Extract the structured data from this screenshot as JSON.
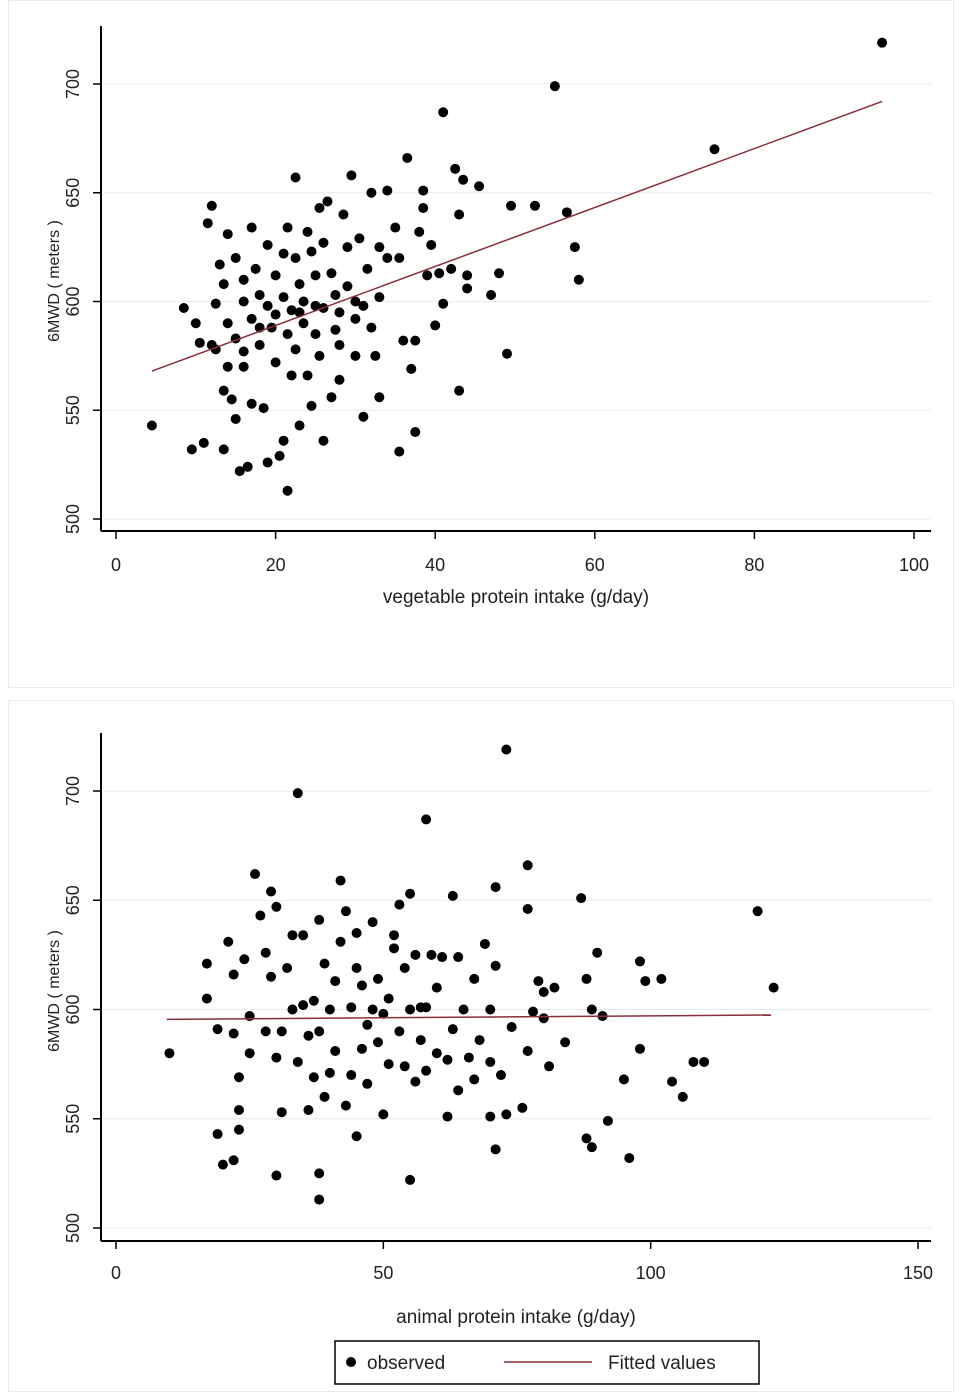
{
  "chart_data": [
    {
      "type": "scatter",
      "title": "",
      "xlabel": "vegetable protein intake (g/day)",
      "ylabel": "6MWD ( meters )",
      "xlim": [
        0,
        100
      ],
      "ylim": [
        500,
        720
      ],
      "xticks": [
        "0",
        "20",
        "40",
        "60",
        "80",
        "100"
      ],
      "yticks": [
        "500",
        "550",
        "600",
        "650",
        "700"
      ],
      "grid": true,
      "colors": {
        "points": "#000000",
        "fit": "#8b2f3a",
        "grid": "#e3ecf0"
      },
      "fitted": {
        "x": [
          4.5,
          96
        ],
        "y": [
          568,
          692
        ]
      },
      "points": [
        [
          4.5,
          543
        ],
        [
          96,
          719
        ],
        [
          55,
          699
        ],
        [
          75,
          670
        ],
        [
          41,
          687
        ],
        [
          49,
          576
        ],
        [
          43,
          559
        ],
        [
          56.5,
          641
        ],
        [
          57.5,
          625
        ],
        [
          58,
          610
        ],
        [
          52.5,
          644
        ],
        [
          49.5,
          644
        ],
        [
          47,
          603
        ],
        [
          48,
          613
        ],
        [
          45.5,
          653
        ],
        [
          42.5,
          661
        ],
        [
          43.5,
          656
        ],
        [
          36.5,
          666
        ],
        [
          37.5,
          540
        ],
        [
          35.5,
          531
        ],
        [
          21.5,
          513
        ],
        [
          8.5,
          597
        ],
        [
          9.5,
          532
        ],
        [
          10,
          590
        ],
        [
          10.5,
          581
        ],
        [
          11,
          535
        ],
        [
          11.5,
          636
        ],
        [
          12,
          644
        ],
        [
          12.5,
          599
        ],
        [
          12.5,
          578
        ],
        [
          13,
          617
        ],
        [
          13.5,
          608
        ],
        [
          13.5,
          559
        ],
        [
          13.5,
          532
        ],
        [
          14,
          631
        ],
        [
          14,
          590
        ],
        [
          14,
          570
        ],
        [
          14.5,
          555
        ],
        [
          15,
          620
        ],
        [
          15,
          583
        ],
        [
          15,
          546
        ],
        [
          15.5,
          522
        ],
        [
          16,
          610
        ],
        [
          16,
          600
        ],
        [
          16,
          570
        ],
        [
          16.5,
          524
        ],
        [
          17,
          634
        ],
        [
          17,
          592
        ],
        [
          17,
          553
        ],
        [
          17.5,
          615
        ],
        [
          18,
          603
        ],
        [
          18,
          580
        ],
        [
          18.5,
          551
        ],
        [
          19,
          626
        ],
        [
          19,
          598
        ],
        [
          19,
          526
        ],
        [
          19.5,
          588
        ],
        [
          20,
          612
        ],
        [
          20,
          572
        ],
        [
          20.5,
          529
        ],
        [
          21,
          622
        ],
        [
          21,
          602
        ],
        [
          21,
          536
        ],
        [
          21.5,
          634
        ],
        [
          21.5,
          585
        ],
        [
          22,
          596
        ],
        [
          22,
          566
        ],
        [
          22.5,
          657
        ],
        [
          22.5,
          620
        ],
        [
          22.5,
          578
        ],
        [
          23,
          608
        ],
        [
          23,
          543
        ],
        [
          23.5,
          600
        ],
        [
          23.5,
          590
        ],
        [
          24,
          632
        ],
        [
          24,
          566
        ],
        [
          24.5,
          623
        ],
        [
          24.5,
          552
        ],
        [
          25,
          612
        ],
        [
          25,
          585
        ],
        [
          25.5,
          643
        ],
        [
          25.5,
          575
        ],
        [
          26,
          627
        ],
        [
          26,
          597
        ],
        [
          26,
          536
        ],
        [
          26.5,
          646
        ],
        [
          27,
          613
        ],
        [
          27,
          556
        ],
        [
          27.5,
          603
        ],
        [
          27.5,
          587
        ],
        [
          28,
          580
        ],
        [
          28,
          564
        ],
        [
          28.5,
          640
        ],
        [
          29,
          625
        ],
        [
          29,
          607
        ],
        [
          29.5,
          658
        ],
        [
          30,
          592
        ],
        [
          30,
          575
        ],
        [
          30.5,
          629
        ],
        [
          31,
          547
        ],
        [
          31.5,
          615
        ],
        [
          32,
          650
        ],
        [
          32,
          588
        ],
        [
          32.5,
          575
        ],
        [
          33,
          602
        ],
        [
          33,
          556
        ],
        [
          34,
          651
        ],
        [
          34,
          620
        ],
        [
          35,
          634
        ],
        [
          35.5,
          620
        ],
        [
          36,
          582
        ],
        [
          37,
          569
        ],
        [
          37.5,
          582
        ],
        [
          38,
          632
        ],
        [
          38.5,
          651
        ],
        [
          38.5,
          643
        ],
        [
          39,
          612
        ],
        [
          39.5,
          626
        ],
        [
          40,
          589
        ],
        [
          40.5,
          613
        ],
        [
          41,
          599
        ],
        [
          42,
          615
        ],
        [
          43,
          640
        ],
        [
          44,
          612
        ],
        [
          44,
          606
        ],
        [
          30,
          600
        ],
        [
          25,
          598
        ],
        [
          23,
          595
        ],
        [
          20,
          594
        ],
        [
          18,
          588
        ],
        [
          28,
          595
        ],
        [
          31,
          598
        ],
        [
          16,
          577
        ],
        [
          12,
          580
        ],
        [
          33,
          625
        ]
      ]
    },
    {
      "type": "scatter",
      "title": "",
      "xlabel": "animal protein intake (g/day)",
      "ylabel": "6MWD ( meters )",
      "xlim": [
        0,
        150
      ],
      "ylim": [
        500,
        720
      ],
      "xticks": [
        "0",
        "50",
        "100",
        "150"
      ],
      "yticks": [
        "500",
        "550",
        "600",
        "650",
        "700"
      ],
      "grid": true,
      "colors": {
        "points": "#000000",
        "fit": "#8b2f3a",
        "grid": "#e3ecf0"
      },
      "fitted": {
        "x": [
          9.5,
          122.5
        ],
        "y": [
          595.5,
          597.5
        ]
      },
      "legend": {
        "position": "bottom",
        "items": [
          "observed",
          "Fitted values"
        ]
      },
      "points": [
        [
          10,
          580
        ],
        [
          34,
          699
        ],
        [
          58,
          687
        ],
        [
          73,
          719
        ],
        [
          120,
          645
        ],
        [
          123,
          610
        ],
        [
          104,
          567
        ],
        [
          106,
          560
        ],
        [
          108,
          576
        ],
        [
          110,
          576
        ],
        [
          96,
          532
        ],
        [
          89,
          537
        ],
        [
          88,
          541
        ],
        [
          92,
          549
        ],
        [
          95,
          568
        ],
        [
          98,
          582
        ],
        [
          98,
          622
        ],
        [
          99,
          613
        ],
        [
          102,
          614
        ],
        [
          87,
          651
        ],
        [
          77,
          666
        ],
        [
          77,
          646
        ],
        [
          71,
          656
        ],
        [
          70,
          551
        ],
        [
          71,
          536
        ],
        [
          55,
          522
        ],
        [
          38,
          513
        ],
        [
          38,
          525
        ],
        [
          20,
          529
        ],
        [
          19,
          543
        ],
        [
          22,
          531
        ],
        [
          30,
          524
        ],
        [
          17,
          621
        ],
        [
          17,
          605
        ],
        [
          19,
          591
        ],
        [
          21,
          631
        ],
        [
          22,
          616
        ],
        [
          22,
          589
        ],
        [
          23,
          569
        ],
        [
          23,
          554
        ],
        [
          23,
          545
        ],
        [
          24,
          623
        ],
        [
          25,
          597
        ],
        [
          25,
          580
        ],
        [
          26,
          662
        ],
        [
          27,
          643
        ],
        [
          28,
          626
        ],
        [
          28,
          590
        ],
        [
          29,
          654
        ],
        [
          29,
          615
        ],
        [
          30,
          647
        ],
        [
          30,
          578
        ],
        [
          31,
          590
        ],
        [
          31,
          553
        ],
        [
          32,
          619
        ],
        [
          33,
          600
        ],
        [
          33,
          634
        ],
        [
          34,
          576
        ],
        [
          35,
          602
        ],
        [
          35,
          634
        ],
        [
          36,
          554
        ],
        [
          36,
          588
        ],
        [
          37,
          604
        ],
        [
          37,
          569
        ],
        [
          38,
          641
        ],
        [
          38,
          590
        ],
        [
          39,
          621
        ],
        [
          39,
          560
        ],
        [
          40,
          600
        ],
        [
          40,
          571
        ],
        [
          41,
          613
        ],
        [
          41,
          581
        ],
        [
          42,
          659
        ],
        [
          42,
          631
        ],
        [
          43,
          645
        ],
        [
          43,
          556
        ],
        [
          44,
          601
        ],
        [
          44,
          570
        ],
        [
          45,
          635
        ],
        [
          45,
          619
        ],
        [
          45,
          542
        ],
        [
          46,
          611
        ],
        [
          46,
          582
        ],
        [
          47,
          593
        ],
        [
          47,
          566
        ],
        [
          48,
          640
        ],
        [
          48,
          600
        ],
        [
          49,
          614
        ],
        [
          49,
          585
        ],
        [
          50,
          598
        ],
        [
          50,
          552
        ],
        [
          51,
          605
        ],
        [
          51,
          575
        ],
        [
          52,
          634
        ],
        [
          52,
          628
        ],
        [
          53,
          648
        ],
        [
          53,
          590
        ],
        [
          54,
          619
        ],
        [
          54,
          574
        ],
        [
          55,
          653
        ],
        [
          55,
          600
        ],
        [
          56,
          625
        ],
        [
          56,
          567
        ],
        [
          57,
          586
        ],
        [
          57,
          601
        ],
        [
          58,
          572
        ],
        [
          58,
          601
        ],
        [
          59,
          625
        ],
        [
          60,
          610
        ],
        [
          60,
          580
        ],
        [
          61,
          624
        ],
        [
          62,
          551
        ],
        [
          62,
          577
        ],
        [
          63,
          652
        ],
        [
          63,
          591
        ],
        [
          64,
          624
        ],
        [
          64,
          563
        ],
        [
          65,
          600
        ],
        [
          66,
          578
        ],
        [
          67,
          614
        ],
        [
          67,
          568
        ],
        [
          68,
          586
        ],
        [
          69,
          630
        ],
        [
          70,
          600
        ],
        [
          70,
          576
        ],
        [
          71,
          620
        ],
        [
          72,
          570
        ],
        [
          73,
          552
        ],
        [
          74,
          592
        ],
        [
          76,
          555
        ],
        [
          77,
          581
        ],
        [
          78,
          599
        ],
        [
          79,
          613
        ],
        [
          80,
          608
        ],
        [
          80,
          596
        ],
        [
          81,
          574
        ],
        [
          82,
          610
        ],
        [
          84,
          585
        ],
        [
          88,
          614
        ],
        [
          89,
          600
        ],
        [
          90,
          626
        ],
        [
          91,
          597
        ]
      ]
    }
  ]
}
